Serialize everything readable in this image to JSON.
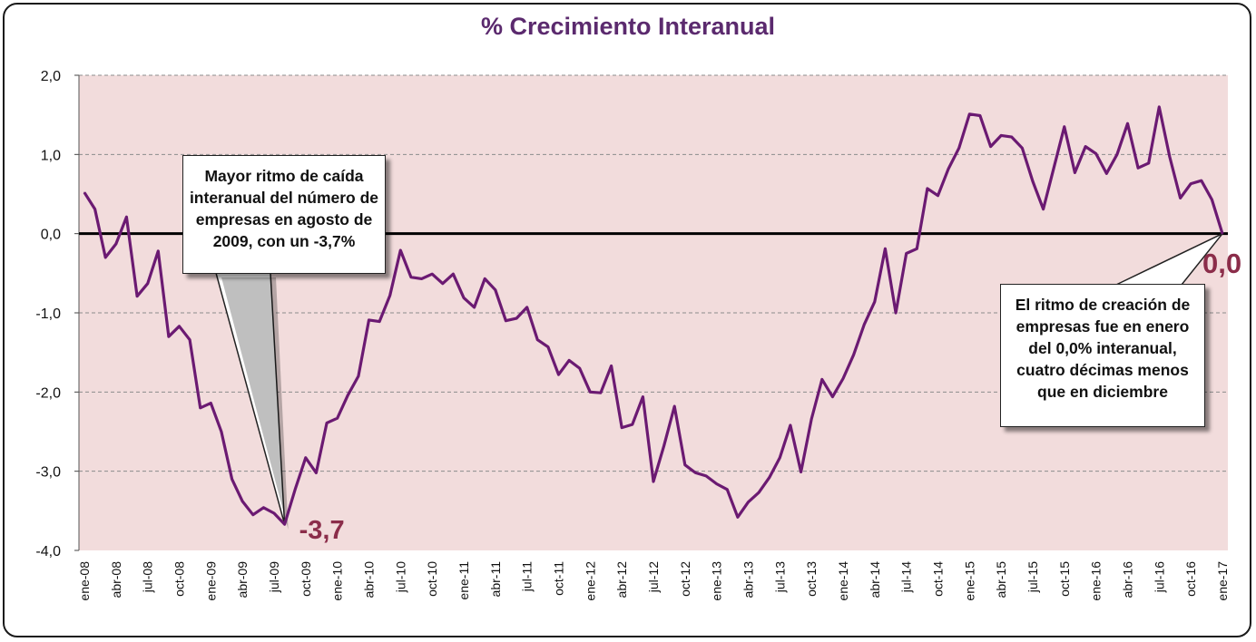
{
  "title": "% Crecimiento Interanual",
  "callouts": {
    "left": "Mayor ritmo de caída interanual del número de empresas en agosto de 2009,  con un -3,7%",
    "right": "El ritmo de creación de empresas fue en enero del 0,0% interanual, cuatro décimas menos que en diciembre"
  },
  "colors": {
    "line": "#6b1a72",
    "plot_bg": "#f2dcdc",
    "zero_line": "#000000",
    "value_label": "#8b2d4a",
    "grid": "#8c8c8c",
    "title": "#5b2a6e"
  },
  "chart_data": {
    "type": "line",
    "title": "% Crecimiento Interanual",
    "xlabel": "",
    "ylabel": "",
    "ylim": [
      -4.0,
      2.0
    ],
    "y_ticks": [
      "2,0",
      "1,0",
      "0,0",
      "-1,0",
      "-2,0",
      "-3,0",
      "-4,0"
    ],
    "grid": true,
    "legend": "none",
    "x_tick_labels": [
      "ene-08",
      "abr-08",
      "jul-08",
      "oct-08",
      "ene-09",
      "abr-09",
      "jul-09",
      "oct-09",
      "ene-10",
      "abr-10",
      "jul-10",
      "oct-10",
      "ene-11",
      "abr-11",
      "jul-11",
      "oct-11",
      "ene-12",
      "abr-12",
      "jul-12",
      "oct-12",
      "ene-13",
      "abr-13",
      "jul-13",
      "oct-13",
      "ene-14",
      "abr-14",
      "jul-14",
      "oct-14",
      "ene-15",
      "abr-15",
      "jul-15",
      "oct-15",
      "ene-16",
      "abr-16",
      "jul-16",
      "oct-16",
      "ene-17"
    ],
    "x_start": "ene-08",
    "x_end": "ene-17",
    "series": [
      {
        "values": [
          0.52,
          0.31,
          -0.3,
          -0.13,
          0.21,
          -0.79,
          -0.63,
          -0.22,
          -1.3,
          -1.17,
          -1.34,
          -2.2,
          -2.14,
          -2.5,
          -3.1,
          -3.38,
          -3.55,
          -3.46,
          -3.53,
          -3.67,
          -3.23,
          -2.83,
          -3.02,
          -2.39,
          -2.33,
          -2.04,
          -1.8,
          -1.09,
          -1.11,
          -0.78,
          -0.21,
          -0.55,
          -0.57,
          -0.51,
          -0.63,
          -0.51,
          -0.81,
          -0.93,
          -0.57,
          -0.71,
          -1.1,
          -1.07,
          -0.93,
          -1.34,
          -1.43,
          -1.78,
          -1.6,
          -1.7,
          -2.0,
          -2.01,
          -1.67,
          -2.45,
          -2.41,
          -2.06,
          -3.13,
          -2.68,
          -2.18,
          -2.92,
          -3.02,
          -3.06,
          -3.16,
          -3.23,
          -3.58,
          -3.39,
          -3.27,
          -3.08,
          -2.83,
          -2.42,
          -3.01,
          -2.34,
          -1.84,
          -2.06,
          -1.83,
          -1.53,
          -1.15,
          -0.86,
          -0.19,
          -1.0,
          -0.25,
          -0.19,
          0.57,
          0.48,
          0.82,
          1.08,
          1.51,
          1.49,
          1.1,
          1.24,
          1.22,
          1.08,
          0.66,
          0.31,
          0.83,
          1.35,
          0.77,
          1.1,
          1.01,
          0.76,
          1.0,
          1.39,
          0.83,
          0.89,
          1.6,
          0.97,
          0.45,
          0.63,
          0.67,
          0.43,
          0.0
        ]
      }
    ],
    "annotations": [
      {
        "label": "-3,7",
        "date": "ago-09",
        "value": -3.7
      },
      {
        "label": "0,0",
        "date": "ene-17",
        "value": 0.0
      }
    ]
  }
}
